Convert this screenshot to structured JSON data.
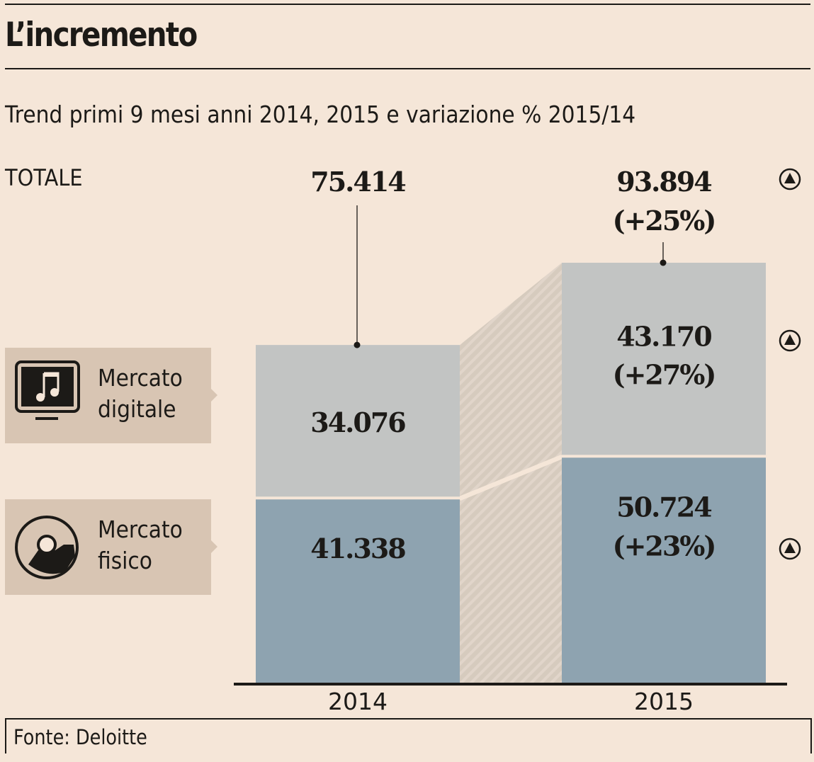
{
  "header": {
    "title": "L’incremento",
    "subtitle": "Trend primi 9 mesi anni 2014, 2015 e variazione % 2015/14"
  },
  "colors": {
    "background": "#f5e6d8",
    "digitale": "#c2c4c3",
    "fisico": "#8ea3b0",
    "legend_box": "#d8c5b3",
    "text": "#1c1a17"
  },
  "legend": [
    {
      "label_line1": "Mercato",
      "label_line2": "digitale",
      "icon": "monitor-music-icon"
    },
    {
      "label_line1": "Mercato",
      "label_line2": "fisico",
      "icon": "cd-disc-icon"
    }
  ],
  "footer": {
    "source": "Fonte: Deloitte"
  },
  "chart_data": {
    "type": "bar",
    "stacked": true,
    "title": "L’incremento",
    "subtitle": "Trend primi 9 mesi anni 2014, 2015 e variazione % 2015/14",
    "categories": [
      "2014",
      "2015"
    ],
    "series": [
      {
        "name": "Mercato fisico",
        "values": [
          41338,
          50724
        ],
        "labels": [
          "41.338",
          "50.724"
        ],
        "change": [
          null,
          "(+23%)"
        ],
        "trend": "up"
      },
      {
        "name": "Mercato digitale",
        "values": [
          34076,
          43170
        ],
        "labels": [
          "34.076",
          "43.170"
        ],
        "change": [
          null,
          "(+27%)"
        ],
        "trend": "up"
      }
    ],
    "totals": {
      "label": "TOTALE",
      "values": [
        75414,
        93894
      ],
      "labels": [
        "75.414",
        "93.894"
      ],
      "change": [
        null,
        "(+25%)"
      ],
      "trend": "up"
    },
    "xlabel": "",
    "ylabel": "",
    "ylim": [
      0,
      100000
    ],
    "grid": false,
    "legend_position": "left"
  }
}
